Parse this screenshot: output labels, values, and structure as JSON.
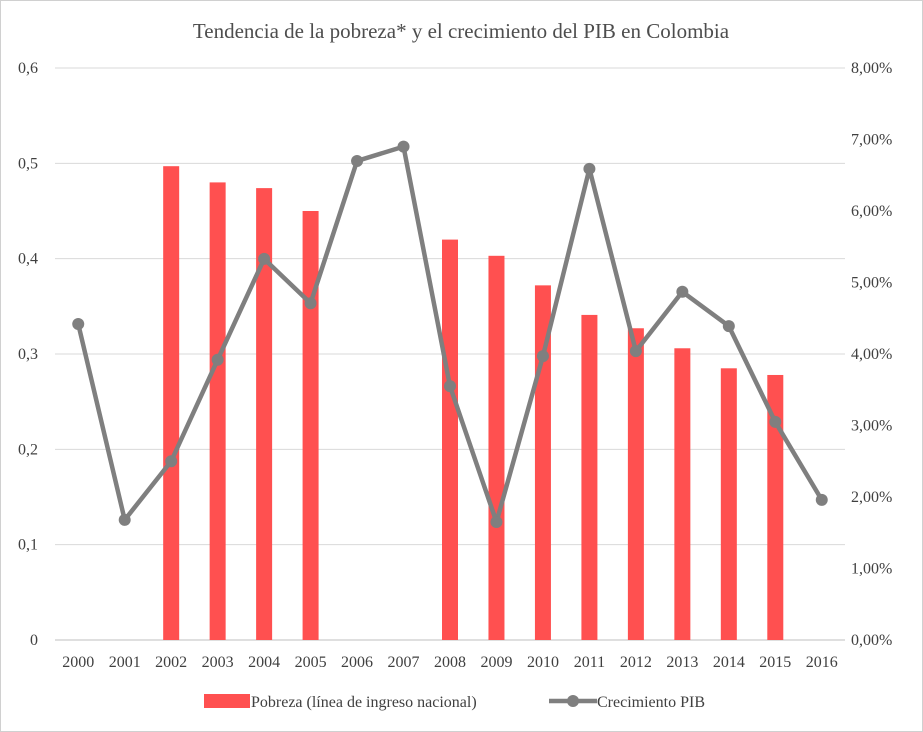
{
  "chart_data": {
    "type": "bar+line",
    "title": "Tendencia de la pobreza* y el crecimiento del PIB en Colombia",
    "categories": [
      "2000",
      "2001",
      "2002",
      "2003",
      "2004",
      "2005",
      "2006",
      "2007",
      "2008",
      "2009",
      "2010",
      "2011",
      "2012",
      "2013",
      "2014",
      "2015",
      "2016"
    ],
    "left_axis": {
      "ticks": [
        "0",
        "0,1",
        "0,2",
        "0,3",
        "0,4",
        "0,5",
        "0,6"
      ],
      "range": [
        0,
        0.6
      ]
    },
    "right_axis": {
      "ticks": [
        "0,00%",
        "1,00%",
        "2,00%",
        "3,00%",
        "4,00%",
        "5,00%",
        "6,00%",
        "7,00%",
        "8,00%"
      ],
      "range": [
        0,
        8
      ]
    },
    "series": [
      {
        "name": "Pobreza (línea de ingreso nacional)",
        "type": "bar",
        "axis": "left",
        "color": "#ff5050",
        "values": [
          null,
          null,
          0.497,
          0.48,
          0.474,
          0.45,
          null,
          null,
          0.42,
          0.403,
          0.372,
          0.341,
          0.327,
          0.306,
          0.285,
          0.278,
          null
        ]
      },
      {
        "name": "Crecimiento PIB",
        "type": "line",
        "axis": "right",
        "color": "#7f7f7f",
        "values": [
          4.42,
          1.68,
          2.5,
          3.92,
          5.33,
          4.71,
          6.7,
          6.9,
          3.55,
          1.65,
          3.97,
          6.59,
          4.04,
          4.87,
          4.39,
          3.05,
          1.96
        ]
      }
    ],
    "legend_position": "bottom",
    "grid": true
  }
}
